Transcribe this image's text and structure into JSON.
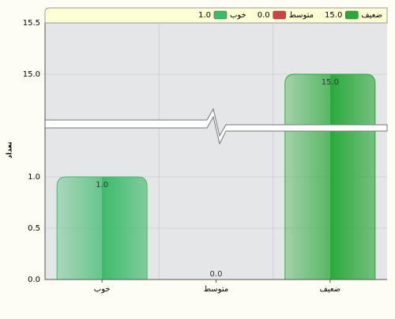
{
  "chart_data": {
    "type": "bar",
    "y_label": "تعداد",
    "categories": [
      "خوب",
      "متوسط",
      "ضعیف"
    ],
    "values": [
      1,
      0,
      15
    ],
    "value_labels": [
      "1.0",
      "0.0",
      "15.0"
    ],
    "colors": [
      "#3dbb6a",
      "#cc4444",
      "#2aa83a"
    ],
    "ylim": [
      0,
      15.5
    ],
    "axis_break": [
      1.5,
      14.5
    ],
    "yticks": [
      {
        "value": 0,
        "label": "0.0"
      },
      {
        "value": 0.5,
        "label": "0.5"
      },
      {
        "value": 1,
        "label": "1.0"
      },
      {
        "value": 15,
        "label": "15.0"
      },
      {
        "value": 15.5,
        "label": "15.5"
      }
    ],
    "grid": true
  }
}
